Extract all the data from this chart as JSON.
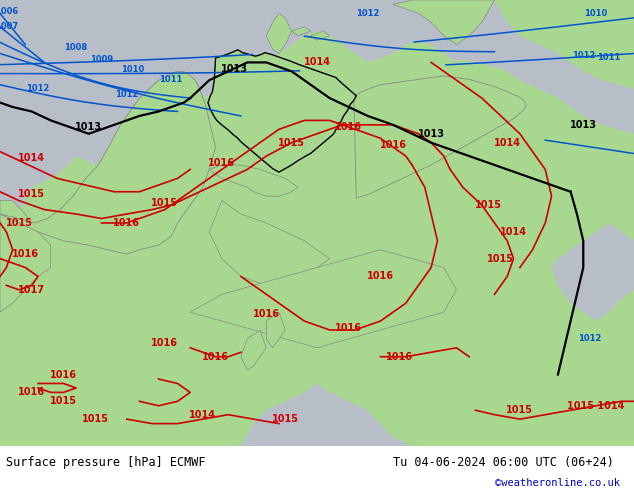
{
  "title_left": "Surface pressure [hPa] ECMWF",
  "title_right": "Tu 04-06-2024 06:00 UTC (06+24)",
  "copyright": "©weatheronline.co.uk",
  "sea_color": "#b8bec8",
  "land_color": "#a8d890",
  "border_color": "#111111",
  "blue_color": "#0055cc",
  "red_color": "#cc0000",
  "black_color": "#000000",
  "grey_border_color": "#888888",
  "footer_bg": "#ffffff",
  "fig_width": 6.34,
  "fig_height": 4.9,
  "dpi": 100
}
